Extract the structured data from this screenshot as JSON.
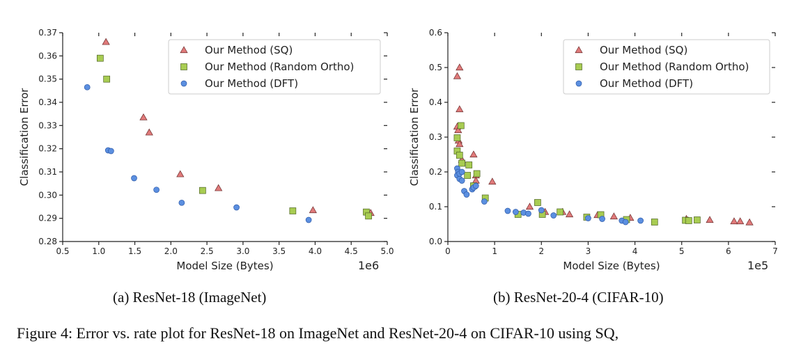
{
  "figure": {
    "caption": "Figure 4: Error vs. rate plot for ResNet-18 on ImageNet and ResNet-20-4 on CIFAR-10 using SQ,"
  },
  "colors": {
    "sq": "#e07a7a",
    "ortho": "#a8cc52",
    "dft": "#5b8fe0"
  },
  "chart_data": [
    {
      "type": "scatter",
      "caption": "(a) ResNet-18 (ImageNet)",
      "xlabel": "Model Size (Bytes)",
      "ylabel": "Classification Error",
      "x_multiplier": "1e6",
      "xlim": [
        0.5,
        5.0
      ],
      "ylim": [
        0.28,
        0.37
      ],
      "xticks": [
        "0.5",
        "1.0",
        "1.5",
        "2.0",
        "2.5",
        "3.0",
        "3.5",
        "4.0",
        "4.5",
        "5.0"
      ],
      "yticks": [
        "0.28",
        "0.29",
        "0.30",
        "0.31",
        "0.32",
        "0.33",
        "0.34",
        "0.35",
        "0.36",
        "0.37"
      ],
      "legend_position": "top-right",
      "series": [
        {
          "name": "Our Method (SQ)",
          "marker": "triangle",
          "points": [
            [
              1.1,
              0.366
            ],
            [
              1.62,
              0.3335
            ],
            [
              1.7,
              0.327
            ],
            [
              2.13,
              0.309
            ],
            [
              2.66,
              0.303
            ],
            [
              3.97,
              0.2935
            ],
            [
              4.77,
              0.2923
            ]
          ]
        },
        {
          "name": "Our Method (Random Ortho)",
          "marker": "square",
          "points": [
            [
              1.02,
              0.359
            ],
            [
              1.11,
              0.35
            ],
            [
              2.44,
              0.302
            ],
            [
              3.69,
              0.2932
            ],
            [
              4.71,
              0.2927
            ],
            [
              4.74,
              0.291
            ]
          ]
        },
        {
          "name": "Our Method (DFT)",
          "marker": "circle",
          "points": [
            [
              0.84,
              0.3465
            ],
            [
              1.13,
              0.3193
            ],
            [
              1.17,
              0.319
            ],
            [
              1.49,
              0.3073
            ],
            [
              1.8,
              0.3023
            ],
            [
              2.15,
              0.2967
            ],
            [
              2.91,
              0.2947
            ],
            [
              3.91,
              0.2893
            ]
          ]
        }
      ]
    },
    {
      "type": "scatter",
      "caption": "(b) ResNet-20-4 (CIFAR-10)",
      "xlabel": "Model Size (Bytes)",
      "ylabel": "Classification Error",
      "x_multiplier": "1e5",
      "xlim": [
        0,
        7
      ],
      "ylim": [
        0.0,
        0.6
      ],
      "xticks": [
        "0",
        "1",
        "2",
        "3",
        "4",
        "5",
        "6",
        "7"
      ],
      "yticks": [
        "0.0",
        "0.1",
        "0.2",
        "0.3",
        "0.4",
        "0.5",
        "0.6"
      ],
      "legend_position": "top-right",
      "series": [
        {
          "name": "Our Method (SQ)",
          "marker": "triangle",
          "points": [
            [
              0.25,
              0.5
            ],
            [
              0.2,
              0.475
            ],
            [
              0.25,
              0.38
            ],
            [
              0.2,
              0.33
            ],
            [
              0.22,
              0.32
            ],
            [
              0.23,
              0.29
            ],
            [
              0.25,
              0.28
            ],
            [
              0.3,
              0.235
            ],
            [
              0.55,
              0.25
            ],
            [
              0.6,
              0.19
            ],
            [
              0.6,
              0.175
            ],
            [
              0.95,
              0.172
            ],
            [
              1.75,
              0.1
            ],
            [
              2.08,
              0.085
            ],
            [
              2.6,
              0.078
            ],
            [
              2.45,
              0.085
            ],
            [
              3.2,
              0.076
            ],
            [
              3.55,
              0.072
            ],
            [
              3.9,
              0.068
            ],
            [
              5.1,
              0.065
            ],
            [
              5.6,
              0.062
            ],
            [
              6.12,
              0.058
            ],
            [
              6.25,
              0.058
            ],
            [
              6.45,
              0.055
            ]
          ]
        },
        {
          "name": "Our Method (Random Ortho)",
          "marker": "square",
          "points": [
            [
              0.28,
              0.333
            ],
            [
              0.2,
              0.298
            ],
            [
              0.2,
              0.26
            ],
            [
              0.25,
              0.248
            ],
            [
              0.3,
              0.225
            ],
            [
              0.45,
              0.22
            ],
            [
              0.42,
              0.19
            ],
            [
              0.62,
              0.195
            ],
            [
              0.55,
              0.16
            ],
            [
              0.8,
              0.125
            ],
            [
              1.5,
              0.078
            ],
            [
              1.92,
              0.112
            ],
            [
              2.02,
              0.078
            ],
            [
              2.4,
              0.085
            ],
            [
              2.97,
              0.07
            ],
            [
              3.27,
              0.077
            ],
            [
              3.82,
              0.063
            ],
            [
              4.42,
              0.056
            ],
            [
              5.08,
              0.061
            ],
            [
              5.15,
              0.06
            ],
            [
              5.33,
              0.062
            ]
          ]
        },
        {
          "name": "Our Method (DFT)",
          "marker": "circle",
          "points": [
            [
              0.2,
              0.21
            ],
            [
              0.22,
              0.2
            ],
            [
              0.2,
              0.19
            ],
            [
              0.25,
              0.18
            ],
            [
              0.25,
              0.195
            ],
            [
              0.3,
              0.2
            ],
            [
              0.3,
              0.175
            ],
            [
              0.35,
              0.145
            ],
            [
              0.4,
              0.135
            ],
            [
              0.52,
              0.15
            ],
            [
              0.55,
              0.155
            ],
            [
              0.6,
              0.16
            ],
            [
              0.78,
              0.115
            ],
            [
              1.28,
              0.088
            ],
            [
              1.45,
              0.085
            ],
            [
              1.62,
              0.083
            ],
            [
              1.72,
              0.08
            ],
            [
              2.0,
              0.09
            ],
            [
              2.26,
              0.075
            ],
            [
              3.0,
              0.067
            ],
            [
              3.3,
              0.065
            ],
            [
              3.72,
              0.06
            ],
            [
              3.8,
              0.056
            ],
            [
              4.12,
              0.06
            ]
          ]
        }
      ]
    }
  ]
}
